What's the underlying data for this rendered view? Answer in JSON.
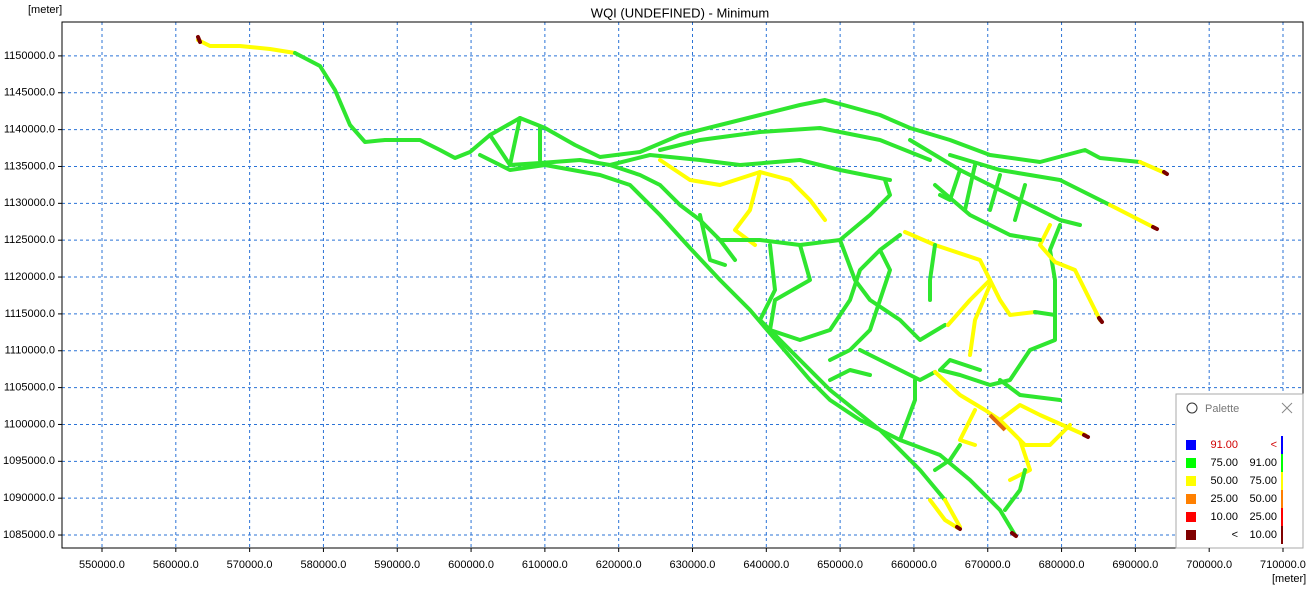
{
  "title": "WQI (UNDEFINED) - Minimum",
  "y_axis": {
    "unit": "[meter]",
    "lim": [
      1083240,
      1154600
    ],
    "ticks": [
      {
        "value": 1085000,
        "label": "1085000.0"
      },
      {
        "value": 1090000,
        "label": "1090000.0"
      },
      {
        "value": 1095000,
        "label": "1095000.0"
      },
      {
        "value": 1100000,
        "label": "1100000.0"
      },
      {
        "value": 1105000,
        "label": "1105000.0"
      },
      {
        "value": 1110000,
        "label": "1110000.0"
      },
      {
        "value": 1115000,
        "label": "1115000.0"
      },
      {
        "value": 1120000,
        "label": "1120000.0"
      },
      {
        "value": 1125000,
        "label": "1125000.0"
      },
      {
        "value": 1130000,
        "label": "1130000.0"
      },
      {
        "value": 1135000,
        "label": "1135000.0"
      },
      {
        "value": 1140000,
        "label": "1140000.0"
      },
      {
        "value": 1145000,
        "label": "1145000.0"
      },
      {
        "value": 1150000,
        "label": "1150000.0"
      }
    ]
  },
  "x_axis": {
    "unit": "[meter]",
    "lim": [
      544580,
      712710
    ],
    "ticks": [
      {
        "value": 550000,
        "label": "550000.0"
      },
      {
        "value": 560000,
        "label": "560000.0"
      },
      {
        "value": 570000,
        "label": "570000.0"
      },
      {
        "value": 580000,
        "label": "580000.0"
      },
      {
        "value": 590000,
        "label": "590000.0"
      },
      {
        "value": 600000,
        "label": "600000.0"
      },
      {
        "value": 610000,
        "label": "610000.0"
      },
      {
        "value": 620000,
        "label": "620000.0"
      },
      {
        "value": 630000,
        "label": "630000.0"
      },
      {
        "value": 640000,
        "label": "640000.0"
      },
      {
        "value": 650000,
        "label": "650000.0"
      },
      {
        "value": 660000,
        "label": "660000.0"
      },
      {
        "value": 670000,
        "label": "670000.0"
      },
      {
        "value": 680000,
        "label": "680000.0"
      },
      {
        "value": 690000,
        "label": "690000.0"
      },
      {
        "value": 700000,
        "label": "700000.0"
      },
      {
        "value": 710000,
        "label": "710000.0"
      }
    ]
  },
  "palette": {
    "title": "Palette",
    "rows": [
      {
        "color": "#0000ff",
        "low": "91.00",
        "high": "<"
      },
      {
        "color": "#00ff00",
        "low": "75.00",
        "high": "91.00"
      },
      {
        "color": "#ffff00",
        "low": "50.00",
        "high": "75.00"
      },
      {
        "color": "#ff8000",
        "low": "25.00",
        "high": "50.00"
      },
      {
        "color": "#ff0000",
        "low": "10.00",
        "high": "25.00"
      },
      {
        "color": "#800000",
        "low": "<",
        "high": "10.00"
      }
    ]
  }
}
